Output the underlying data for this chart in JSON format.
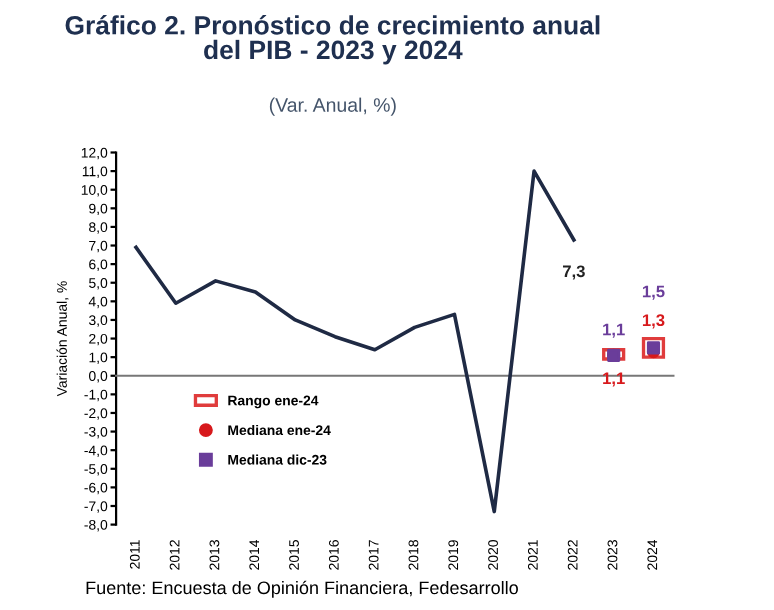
{
  "chart_data": {
    "type": "line",
    "title": "Gráfico 2. Pronóstico de crecimiento anual\ndel PIB - 2023 y 2024",
    "subtitle": "(Var. Anual, %)",
    "ylabel": "Variación Anual, %",
    "categories": [
      "2011",
      "2012",
      "2013",
      "2014",
      "2015",
      "2016",
      "2017",
      "2018",
      "2019",
      "2020",
      "2021",
      "2022",
      "2023",
      "2024"
    ],
    "series": [
      {
        "color": "#1f2a44",
        "values": [
          6.9,
          3.9,
          5.1,
          4.5,
          3.0,
          2.1,
          1.4,
          2.6,
          3.3,
          -7.3,
          11.0,
          7.3,
          null,
          null
        ],
        "value_labels": [
          null,
          null,
          null,
          null,
          null,
          null,
          null,
          null,
          null,
          null,
          null,
          "7,3",
          null,
          null
        ]
      },
      {
        "type": "bar",
        "name": "Rango ene-24",
        "color": "#e03c3c",
        "base": [
          null,
          null,
          null,
          null,
          null,
          null,
          null,
          null,
          null,
          null,
          null,
          null,
          0.9,
          1.0
        ],
        "values": [
          null,
          null,
          null,
          null,
          null,
          null,
          null,
          null,
          null,
          null,
          null,
          null,
          0.5,
          1.0
        ]
      },
      {
        "type": "scatter",
        "name": "Mediana ene-24",
        "color": "#d7191c",
        "marker": "circle",
        "values": [
          null,
          null,
          null,
          null,
          null,
          null,
          null,
          null,
          null,
          null,
          null,
          null,
          1.1,
          1.3
        ],
        "value_labels": [
          null,
          null,
          null,
          null,
          null,
          null,
          null,
          null,
          null,
          null,
          null,
          null,
          "1,1",
          "1,3"
        ]
      },
      {
        "type": "scatter",
        "name": "Mediana dic-23",
        "color": "#6a3d9a",
        "marker": "square",
        "values": [
          null,
          null,
          null,
          null,
          null,
          null,
          null,
          null,
          null,
          null,
          null,
          null,
          1.1,
          1.5
        ],
        "value_labels": [
          null,
          null,
          null,
          null,
          null,
          null,
          null,
          null,
          null,
          null,
          null,
          null,
          "1,1",
          "1,5"
        ]
      }
    ],
    "ylim": [
      -8,
      12
    ],
    "yticks": [
      {
        "value": -8,
        "label": "-8,0"
      },
      {
        "value": -7,
        "label": "-7,0"
      },
      {
        "value": -6,
        "label": "-6,0"
      },
      {
        "value": -5,
        "label": "-5,0"
      },
      {
        "value": -4,
        "label": "-4,0"
      },
      {
        "value": -3,
        "label": "-3,0"
      },
      {
        "value": -2,
        "label": "-2,0"
      },
      {
        "value": -1,
        "label": "-1,0"
      },
      {
        "value": 0,
        "label": "0,0"
      },
      {
        "value": 1,
        "label": "1,0"
      },
      {
        "value": 2,
        "label": "2,0"
      },
      {
        "value": 3,
        "label": "3,0"
      },
      {
        "value": 4,
        "label": "4,0"
      },
      {
        "value": 5,
        "label": "5,0"
      },
      {
        "value": 6,
        "label": "6,0"
      },
      {
        "value": 7,
        "label": "7,0"
      },
      {
        "value": 8,
        "label": "8,0"
      },
      {
        "value": 9,
        "label": "9,0"
      },
      {
        "value": 10,
        "label": "10,0"
      },
      {
        "value": 11,
        "label": "11,0"
      },
      {
        "value": 12,
        "label": "12,0"
      }
    ],
    "legend": "bottom left",
    "annotations": [
      "Fuente: Encuesta de Opinión Financiera, Fedesarrollo"
    ]
  }
}
